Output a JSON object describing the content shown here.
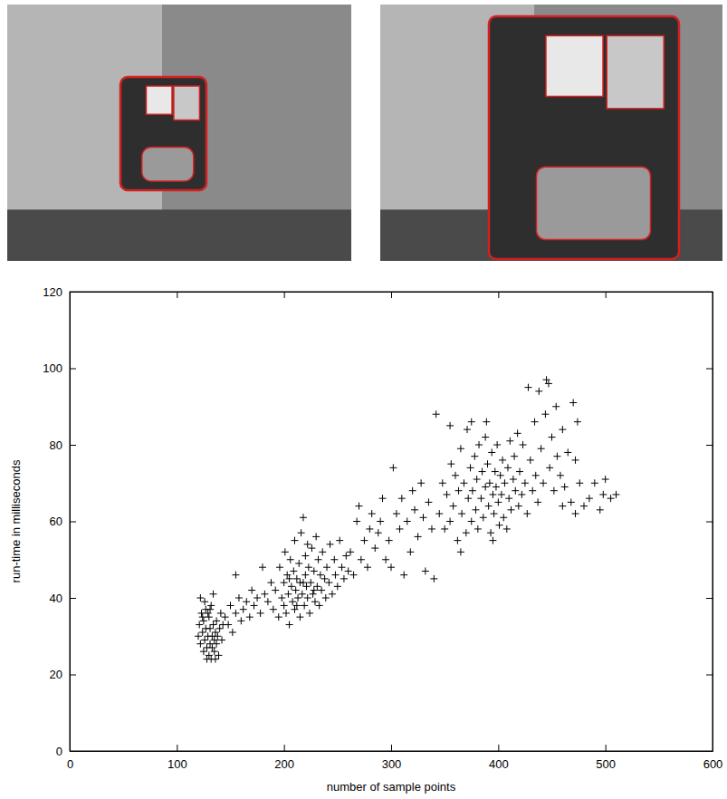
{
  "chart_data": {
    "type": "scatter",
    "x_label": "number of sample points",
    "y_label": "run-time in milliseconds",
    "color": "#000000",
    "marker": "plus",
    "xlim": [
      0,
      600
    ],
    "xticks": [
      0,
      100,
      200,
      300,
      400,
      500,
      600
    ],
    "ylim": [
      0,
      120
    ],
    "yticks": [
      0,
      20,
      40,
      60,
      80,
      100,
      120
    ],
    "grid": false,
    "x": [
      120,
      121,
      122,
      123,
      124,
      125,
      125,
      126,
      127,
      127,
      128,
      128,
      129,
      130,
      130,
      131,
      131,
      132,
      132,
      133,
      133,
      134,
      135,
      135,
      136,
      137,
      137,
      138,
      139,
      140,
      141,
      142,
      143,
      122,
      126,
      134,
      129,
      136,
      124,
      131,
      145,
      148,
      150,
      152,
      155,
      155,
      158,
      160,
      162,
      165,
      168,
      170,
      172,
      175,
      178,
      180,
      182,
      185,
      188,
      190,
      192,
      195,
      196,
      198,
      200,
      200,
      201,
      202,
      203,
      204,
      205,
      206,
      207,
      208,
      209,
      210,
      210,
      211,
      212,
      213,
      214,
      215,
      215,
      216,
      217,
      218,
      219,
      220,
      220,
      221,
      222,
      223,
      224,
      225,
      226,
      227,
      228,
      229,
      230,
      231,
      232,
      233,
      234,
      235,
      236,
      238,
      239,
      240,
      242,
      243,
      245,
      247,
      248,
      250,
      252,
      254,
      256,
      258,
      260,
      205,
      212,
      218,
      222,
      228,
      262,
      265,
      268,
      270,
      272,
      275,
      278,
      280,
      282,
      285,
      288,
      290,
      292,
      295,
      298,
      300,
      302,
      305,
      308,
      310,
      312,
      315,
      318,
      320,
      322,
      325,
      328,
      330,
      332,
      335,
      338,
      340,
      342,
      345,
      348,
      350,
      352,
      355,
      356,
      358,
      360,
      362,
      363,
      365,
      366,
      368,
      370,
      371,
      372,
      374,
      375,
      376,
      378,
      379,
      380,
      381,
      382,
      384,
      385,
      386,
      388,
      389,
      390,
      391,
      392,
      393,
      394,
      395,
      396,
      397,
      398,
      399,
      400,
      401,
      402,
      403,
      404,
      405,
      406,
      408,
      409,
      410,
      411,
      412,
      414,
      415,
      416,
      418,
      419,
      420,
      422,
      423,
      425,
      427,
      428,
      430,
      432,
      434,
      435,
      437,
      438,
      440,
      442,
      444,
      445,
      447,
      448,
      450,
      452,
      454,
      455,
      458,
      460,
      462,
      465,
      468,
      470,
      472,
      474,
      476,
      480,
      485,
      490,
      495,
      498,
      500,
      505,
      510,
      472,
      460,
      388,
      375,
      365,
      395,
      355
    ],
    "values": [
      30,
      33,
      28,
      36,
      31,
      26,
      34,
      29,
      37,
      32,
      27,
      24,
      30,
      35,
      25,
      28,
      32,
      24,
      38,
      30,
      27,
      33,
      29,
      26,
      31,
      34,
      28,
      30,
      25,
      32,
      36,
      29,
      33,
      40,
      39,
      41,
      36,
      24,
      35,
      37,
      35,
      33,
      38,
      31,
      46,
      36,
      40,
      34,
      37,
      39,
      35,
      42,
      38,
      40,
      36,
      48,
      41,
      39,
      44,
      37,
      42,
      35,
      48,
      40,
      44,
      38,
      52,
      36,
      46,
      41,
      33,
      50,
      43,
      39,
      47,
      37,
      55,
      42,
      45,
      40,
      49,
      35,
      44,
      57,
      41,
      61,
      38,
      46,
      51,
      43,
      40,
      48,
      36,
      44,
      53,
      41,
      47,
      39,
      56,
      43,
      50,
      38,
      46,
      42,
      52,
      45,
      40,
      48,
      44,
      54,
      41,
      50,
      46,
      43,
      55,
      48,
      45,
      51,
      47,
      45,
      38,
      44,
      54,
      42,
      52,
      46,
      60,
      64,
      50,
      55,
      48,
      58,
      62,
      53,
      57,
      60,
      66,
      50,
      55,
      48,
      74,
      62,
      58,
      66,
      46,
      60,
      52,
      68,
      63,
      56,
      70,
      61,
      47,
      65,
      58,
      45,
      88,
      62,
      70,
      58,
      67,
      60,
      75,
      64,
      72,
      55,
      68,
      79,
      62,
      70,
      57,
      84,
      66,
      74,
      60,
      68,
      77,
      63,
      71,
      58,
      80,
      66,
      73,
      61,
      69,
      86,
      75,
      64,
      70,
      57,
      78,
      67,
      62,
      73,
      69,
      80,
      65,
      59,
      72,
      67,
      76,
      61,
      70,
      58,
      74,
      66,
      81,
      63,
      71,
      77,
      68,
      83,
      64,
      73,
      67,
      80,
      70,
      62,
      95,
      76,
      68,
      86,
      72,
      65,
      94,
      79,
      70,
      88,
      97,
      96,
      74,
      82,
      68,
      90,
      77,
      72,
      84,
      69,
      78,
      65,
      91,
      76,
      86,
      70,
      64,
      66,
      70,
      63,
      67,
      71,
      66,
      67,
      62,
      64,
      82,
      86,
      52,
      55,
      85
    ]
  }
}
